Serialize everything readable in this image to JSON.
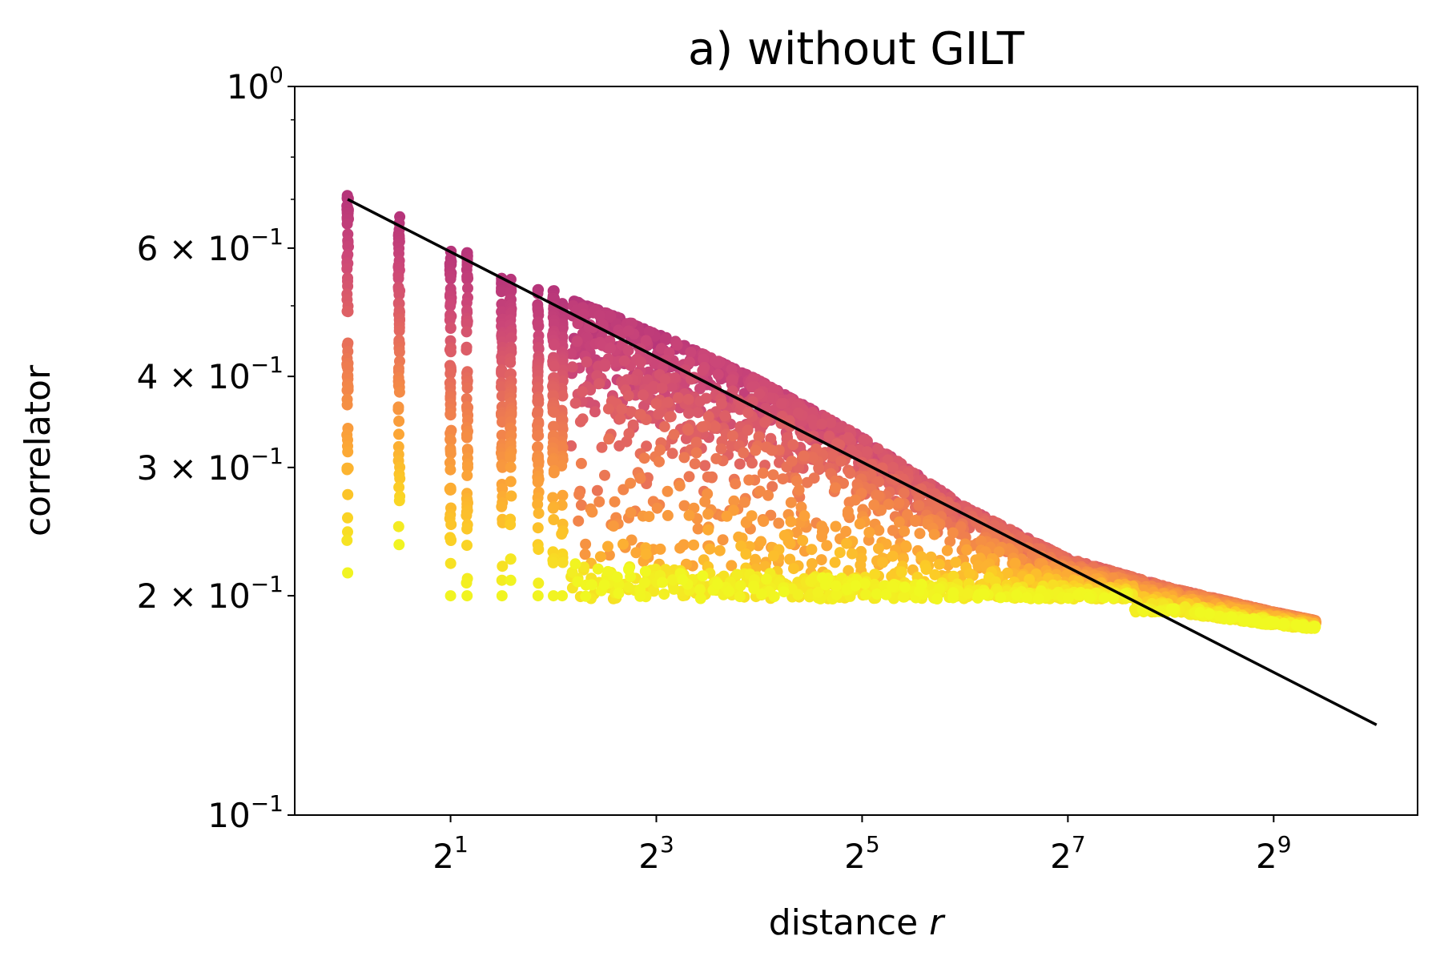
{
  "chart_data": {
    "type": "scatter",
    "title": "a) without GILT",
    "xlabel": "distance",
    "xlabel_var": "r",
    "ylabel": "correlator",
    "xscale": "log2",
    "yscale": "log10",
    "xlim": [
      0.7,
      1350
    ],
    "ylim": [
      0.1,
      1.0
    ],
    "x_ticks": [
      {
        "value": 2,
        "base": "2",
        "exp": "1"
      },
      {
        "value": 8,
        "base": "2",
        "exp": "3"
      },
      {
        "value": 32,
        "base": "2",
        "exp": "5"
      },
      {
        "value": 128,
        "base": "2",
        "exp": "7"
      },
      {
        "value": 512,
        "base": "2",
        "exp": "9"
      }
    ],
    "y_ticks": [
      {
        "value": 1.0,
        "mant": "",
        "base": "10",
        "exp": "0"
      },
      {
        "value": 0.6,
        "mant": "6 × ",
        "base": "10",
        "exp": "−1"
      },
      {
        "value": 0.4,
        "mant": "4 × ",
        "base": "10",
        "exp": "−1"
      },
      {
        "value": 0.3,
        "mant": "3 × ",
        "base": "10",
        "exp": "−1"
      },
      {
        "value": 0.2,
        "mant": "2 × ",
        "base": "10",
        "exp": "−1"
      },
      {
        "value": 0.1,
        "mant": "",
        "base": "10",
        "exp": "−1"
      }
    ],
    "y_minor_ticks": [
      0.5,
      0.7,
      0.8,
      0.9
    ],
    "fit_line": {
      "x": [
        1.0,
        1024
      ],
      "y": [
        0.7,
        0.133
      ],
      "color": "#000000"
    },
    "column_samples": [
      {
        "x": 1.0,
        "ymin": 0.215,
        "ymax": 0.71
      },
      {
        "x": 1.414,
        "ymin": 0.235,
        "ymax": 0.665
      },
      {
        "x": 2.0,
        "ymin": 0.2,
        "ymax": 0.598
      },
      {
        "x": 2.236,
        "ymin": 0.2,
        "ymax": 0.6
      },
      {
        "x": 2.828,
        "ymin": 0.2,
        "ymax": 0.55
      },
      {
        "x": 3.0,
        "ymin": 0.21,
        "ymax": 0.552
      },
      {
        "x": 3.606,
        "ymin": 0.2,
        "ymax": 0.53
      },
      {
        "x": 4.0,
        "ymin": 0.2,
        "ymax": 0.528
      },
      {
        "x": 4.243,
        "ymin": 0.2,
        "ymax": 0.51
      }
    ],
    "cloud": {
      "x_range": [
        4.5,
        680
      ],
      "upper_edge": [
        [
          4.5,
          0.51
        ],
        [
          8,
          0.46
        ],
        [
          16,
          0.395
        ],
        [
          32,
          0.33
        ],
        [
          64,
          0.265
        ],
        [
          128,
          0.225
        ],
        [
          256,
          0.205
        ],
        [
          512,
          0.19
        ],
        [
          680,
          0.185
        ]
      ],
      "lower_floor": 0.198,
      "tail_floor": [
        [
          256,
          0.19
        ],
        [
          512,
          0.182
        ],
        [
          680,
          0.18
        ]
      ]
    },
    "colormap": [
      "#b5347a",
      "#cc4778",
      "#e16462",
      "#f2844b",
      "#fca636",
      "#fcce25",
      "#f0f921"
    ]
  }
}
